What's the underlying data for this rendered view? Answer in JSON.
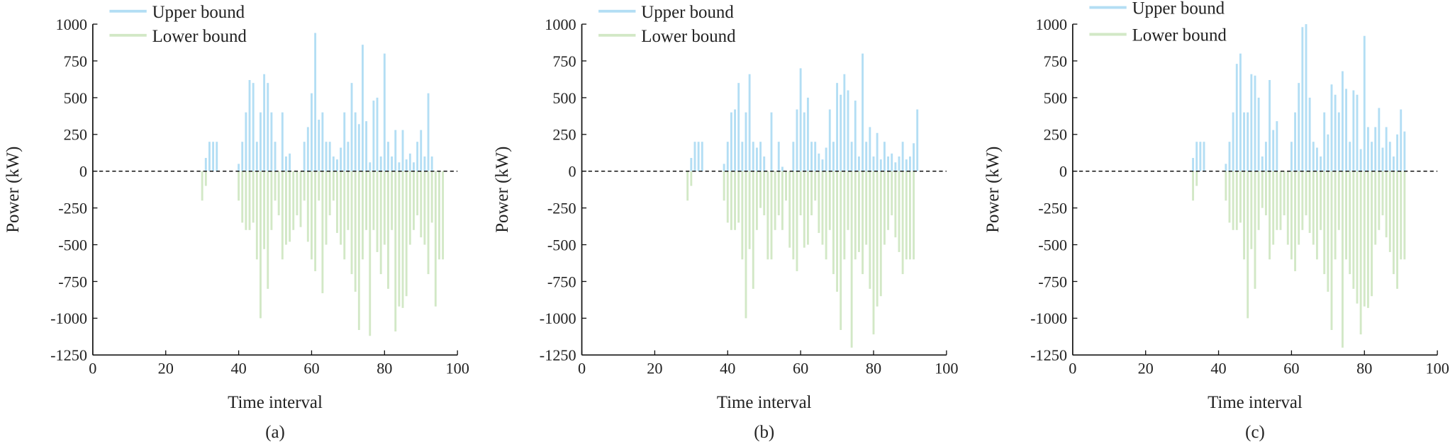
{
  "colors": {
    "upper": "#b3def4",
    "lower": "#d2e8c6",
    "axis": "#111111"
  },
  "chart_data": [
    {
      "type": "bar",
      "caption": "(a)",
      "xlabel": "Time interval",
      "ylabel": "Power (kW)",
      "xlim": [
        0,
        100
      ],
      "ylim": [
        -1250,
        1000
      ],
      "xticks": [
        0,
        20,
        40,
        60,
        80,
        100
      ],
      "yticks": [
        1000,
        750,
        500,
        250,
        0,
        -250,
        -500,
        -750,
        -1000,
        -1250
      ],
      "legend": [
        "Upper bound",
        "Lower bound"
      ],
      "legend_position": "top-left",
      "reference_line": 0,
      "upper": [
        [
          31,
          90
        ],
        [
          32,
          200
        ],
        [
          33,
          200
        ],
        [
          34,
          200
        ],
        [
          40,
          50
        ],
        [
          41,
          200
        ],
        [
          42,
          400
        ],
        [
          43,
          620
        ],
        [
          44,
          600
        ],
        [
          45,
          200
        ],
        [
          46,
          400
        ],
        [
          47,
          660
        ],
        [
          48,
          600
        ],
        [
          49,
          400
        ],
        [
          50,
          200
        ],
        [
          52,
          400
        ],
        [
          53,
          100
        ],
        [
          54,
          120
        ],
        [
          58,
          200
        ],
        [
          59,
          300
        ],
        [
          60,
          530
        ],
        [
          61,
          940
        ],
        [
          62,
          350
        ],
        [
          63,
          400
        ],
        [
          64,
          200
        ],
        [
          65,
          200
        ],
        [
          66,
          100
        ],
        [
          67,
          80
        ],
        [
          68,
          160
        ],
        [
          69,
          400
        ],
        [
          70,
          200
        ],
        [
          71,
          600
        ],
        [
          72,
          400
        ],
        [
          73,
          320
        ],
        [
          74,
          860
        ],
        [
          75,
          340
        ],
        [
          76,
          60
        ],
        [
          77,
          480
        ],
        [
          78,
          500
        ],
        [
          79,
          100
        ],
        [
          80,
          800
        ],
        [
          81,
          200
        ],
        [
          82,
          100
        ],
        [
          83,
          280
        ],
        [
          84,
          60
        ],
        [
          85,
          280
        ],
        [
          86,
          80
        ],
        [
          87,
          120
        ],
        [
          88,
          60
        ],
        [
          89,
          200
        ],
        [
          90,
          280
        ],
        [
          91,
          100
        ],
        [
          92,
          530
        ],
        [
          93,
          100
        ]
      ],
      "lower": [
        [
          30,
          -200
        ],
        [
          31,
          -100
        ],
        [
          40,
          -200
        ],
        [
          41,
          -350
        ],
        [
          42,
          -400
        ],
        [
          43,
          -400
        ],
        [
          44,
          -350
        ],
        [
          45,
          -600
        ],
        [
          46,
          -1000
        ],
        [
          47,
          -530
        ],
        [
          48,
          -800
        ],
        [
          49,
          -400
        ],
        [
          50,
          -200
        ],
        [
          51,
          -300
        ],
        [
          52,
          -600
        ],
        [
          53,
          -500
        ],
        [
          54,
          -480
        ],
        [
          55,
          -400
        ],
        [
          56,
          -300
        ],
        [
          57,
          -380
        ],
        [
          58,
          -200
        ],
        [
          59,
          -480
        ],
        [
          60,
          -600
        ],
        [
          61,
          -680
        ],
        [
          62,
          -200
        ],
        [
          63,
          -830
        ],
        [
          64,
          -500
        ],
        [
          65,
          -300
        ],
        [
          66,
          -200
        ],
        [
          67,
          -420
        ],
        [
          68,
          -500
        ],
        [
          69,
          -600
        ],
        [
          70,
          -400
        ],
        [
          71,
          -700
        ],
        [
          72,
          -820
        ],
        [
          73,
          -1080
        ],
        [
          74,
          -600
        ],
        [
          75,
          -400
        ],
        [
          76,
          -1120
        ],
        [
          77,
          -400
        ],
        [
          78,
          -550
        ],
        [
          79,
          -700
        ],
        [
          80,
          -500
        ],
        [
          81,
          -800
        ],
        [
          82,
          -400
        ],
        [
          83,
          -1090
        ],
        [
          84,
          -920
        ],
        [
          85,
          -930
        ],
        [
          86,
          -850
        ],
        [
          87,
          -500
        ],
        [
          88,
          -400
        ],
        [
          89,
          -300
        ],
        [
          90,
          -450
        ],
        [
          91,
          -500
        ],
        [
          92,
          -700
        ],
        [
          93,
          -350
        ],
        [
          94,
          -920
        ],
        [
          95,
          -600
        ],
        [
          96,
          -600
        ]
      ]
    },
    {
      "type": "bar",
      "caption": "(b)",
      "xlabel": "Time interval",
      "ylabel": "Power (kW)",
      "xlim": [
        0,
        100
      ],
      "ylim": [
        -1250,
        1000
      ],
      "xticks": [
        0,
        20,
        40,
        60,
        80,
        100
      ],
      "yticks": [
        1000,
        750,
        500,
        250,
        0,
        -250,
        -500,
        -750,
        -1000,
        -1250
      ],
      "legend": [
        "Upper bound",
        "Lower bound"
      ],
      "legend_position": "top-left",
      "reference_line": 0,
      "upper": [
        [
          30,
          90
        ],
        [
          31,
          200
        ],
        [
          32,
          200
        ],
        [
          33,
          200
        ],
        [
          39,
          50
        ],
        [
          40,
          200
        ],
        [
          41,
          400
        ],
        [
          42,
          420
        ],
        [
          43,
          600
        ],
        [
          44,
          200
        ],
        [
          45,
          400
        ],
        [
          46,
          660
        ],
        [
          47,
          200
        ],
        [
          48,
          160
        ],
        [
          49,
          200
        ],
        [
          50,
          100
        ],
        [
          52,
          400
        ],
        [
          54,
          200
        ],
        [
          55,
          30
        ],
        [
          58,
          200
        ],
        [
          59,
          420
        ],
        [
          60,
          700
        ],
        [
          61,
          400
        ],
        [
          62,
          500
        ],
        [
          63,
          200
        ],
        [
          64,
          200
        ],
        [
          65,
          120
        ],
        [
          66,
          80
        ],
        [
          67,
          160
        ],
        [
          68,
          420
        ],
        [
          69,
          200
        ],
        [
          70,
          600
        ],
        [
          71,
          520
        ],
        [
          72,
          660
        ],
        [
          73,
          550
        ],
        [
          74,
          200
        ],
        [
          75,
          480
        ],
        [
          76,
          100
        ],
        [
          77,
          800
        ],
        [
          78,
          200
        ],
        [
          79,
          300
        ],
        [
          80,
          100
        ],
        [
          81,
          260
        ],
        [
          82,
          80
        ],
        [
          83,
          200
        ],
        [
          84,
          100
        ],
        [
          85,
          120
        ],
        [
          86,
          60
        ],
        [
          87,
          100
        ],
        [
          88,
          200
        ],
        [
          89,
          80
        ],
        [
          90,
          100
        ],
        [
          91,
          190
        ],
        [
          92,
          420
        ]
      ],
      "lower": [
        [
          29,
          -200
        ],
        [
          30,
          -100
        ],
        [
          39,
          -200
        ],
        [
          40,
          -350
        ],
        [
          41,
          -400
        ],
        [
          42,
          -400
        ],
        [
          43,
          -350
        ],
        [
          44,
          -600
        ],
        [
          45,
          -1000
        ],
        [
          46,
          -530
        ],
        [
          47,
          -800
        ],
        [
          48,
          -400
        ],
        [
          49,
          -250
        ],
        [
          50,
          -300
        ],
        [
          51,
          -600
        ],
        [
          52,
          -600
        ],
        [
          53,
          -400
        ],
        [
          54,
          -300
        ],
        [
          55,
          -400
        ],
        [
          56,
          -200
        ],
        [
          57,
          -520
        ],
        [
          58,
          -600
        ],
        [
          59,
          -680
        ],
        [
          60,
          -300
        ],
        [
          61,
          -520
        ],
        [
          62,
          -500
        ],
        [
          63,
          -300
        ],
        [
          64,
          -200
        ],
        [
          65,
          -420
        ],
        [
          66,
          -500
        ],
        [
          67,
          -600
        ],
        [
          68,
          -400
        ],
        [
          69,
          -700
        ],
        [
          70,
          -820
        ],
        [
          71,
          -1080
        ],
        [
          72,
          -600
        ],
        [
          73,
          -400
        ],
        [
          74,
          -1200
        ],
        [
          75,
          -600
        ],
        [
          76,
          -550
        ],
        [
          77,
          -700
        ],
        [
          78,
          -500
        ],
        [
          79,
          -800
        ],
        [
          80,
          -1110
        ],
        [
          81,
          -920
        ],
        [
          82,
          -850
        ],
        [
          83,
          -500
        ],
        [
          84,
          -400
        ],
        [
          85,
          -300
        ],
        [
          86,
          -450
        ],
        [
          87,
          -550
        ],
        [
          88,
          -700
        ],
        [
          89,
          -600
        ],
        [
          90,
          -600
        ],
        [
          91,
          -600
        ]
      ]
    },
    {
      "type": "bar",
      "caption": "(c)",
      "xlabel": "Time interval",
      "ylabel": "Power (kW)",
      "xlim": [
        0,
        100
      ],
      "ylim": [
        -1250,
        1000
      ],
      "xticks": [
        0,
        20,
        40,
        60,
        80,
        100
      ],
      "yticks": [
        1000,
        750,
        500,
        250,
        0,
        -250,
        -500,
        -750,
        -1000,
        -1250
      ],
      "legend": [
        "Upper bound",
        "Lower bound"
      ],
      "legend_position": "top-left",
      "reference_line": 0,
      "upper": [
        [
          33,
          90
        ],
        [
          34,
          200
        ],
        [
          35,
          200
        ],
        [
          36,
          200
        ],
        [
          42,
          50
        ],
        [
          43,
          200
        ],
        [
          44,
          400
        ],
        [
          45,
          730
        ],
        [
          46,
          800
        ],
        [
          47,
          400
        ],
        [
          48,
          400
        ],
        [
          49,
          660
        ],
        [
          50,
          650
        ],
        [
          51,
          500
        ],
        [
          52,
          100
        ],
        [
          53,
          200
        ],
        [
          54,
          620
        ],
        [
          55,
          280
        ],
        [
          56,
          340
        ],
        [
          60,
          200
        ],
        [
          61,
          400
        ],
        [
          62,
          600
        ],
        [
          63,
          980
        ],
        [
          64,
          1000
        ],
        [
          65,
          500
        ],
        [
          66,
          200
        ],
        [
          67,
          160
        ],
        [
          68,
          100
        ],
        [
          69,
          400
        ],
        [
          70,
          250
        ],
        [
          71,
          590
        ],
        [
          72,
          520
        ],
        [
          73,
          400
        ],
        [
          74,
          680
        ],
        [
          75,
          560
        ],
        [
          76,
          200
        ],
        [
          77,
          550
        ],
        [
          78,
          520
        ],
        [
          79,
          150
        ],
        [
          80,
          920
        ],
        [
          81,
          300
        ],
        [
          82,
          200
        ],
        [
          83,
          300
        ],
        [
          84,
          430
        ],
        [
          85,
          160
        ],
        [
          86,
          300
        ],
        [
          87,
          200
        ],
        [
          88,
          100
        ],
        [
          89,
          250
        ],
        [
          90,
          420
        ],
        [
          91,
          270
        ]
      ],
      "lower": [
        [
          33,
          -200
        ],
        [
          34,
          -100
        ],
        [
          42,
          -200
        ],
        [
          43,
          -350
        ],
        [
          44,
          -400
        ],
        [
          45,
          -400
        ],
        [
          46,
          -350
        ],
        [
          47,
          -600
        ],
        [
          48,
          -1000
        ],
        [
          49,
          -530
        ],
        [
          50,
          -800
        ],
        [
          51,
          -400
        ],
        [
          52,
          -250
        ],
        [
          53,
          -300
        ],
        [
          54,
          -600
        ],
        [
          55,
          -500
        ],
        [
          56,
          -400
        ],
        [
          57,
          -400
        ],
        [
          58,
          -300
        ],
        [
          59,
          -500
        ],
        [
          60,
          -600
        ],
        [
          61,
          -680
        ],
        [
          62,
          -500
        ],
        [
          63,
          -400
        ],
        [
          64,
          -300
        ],
        [
          65,
          -420
        ],
        [
          66,
          -500
        ],
        [
          67,
          -600
        ],
        [
          68,
          -400
        ],
        [
          69,
          -700
        ],
        [
          70,
          -820
        ],
        [
          71,
          -1080
        ],
        [
          72,
          -600
        ],
        [
          73,
          -400
        ],
        [
          74,
          -1200
        ],
        [
          75,
          -600
        ],
        [
          76,
          -700
        ],
        [
          77,
          -800
        ],
        [
          78,
          -900
        ],
        [
          79,
          -1110
        ],
        [
          80,
          -920
        ],
        [
          81,
          -930
        ],
        [
          82,
          -850
        ],
        [
          83,
          -500
        ],
        [
          84,
          -400
        ],
        [
          85,
          -300
        ],
        [
          86,
          -450
        ],
        [
          87,
          -550
        ],
        [
          88,
          -700
        ],
        [
          89,
          -800
        ],
        [
          90,
          -600
        ],
        [
          91,
          -600
        ]
      ]
    }
  ]
}
